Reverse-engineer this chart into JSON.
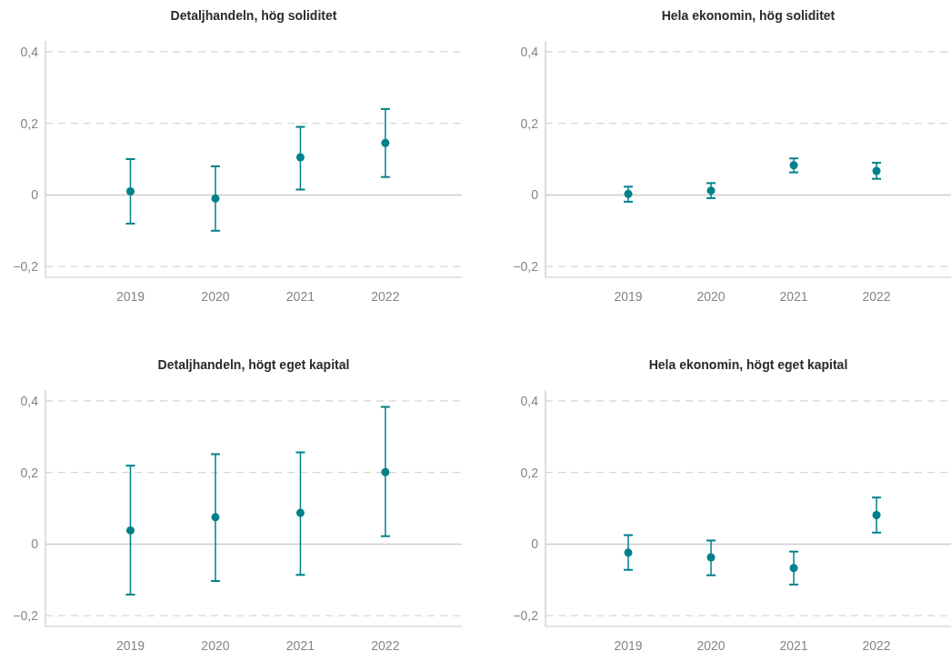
{
  "chart_data": [
    {
      "type": "scatter",
      "title": "Detaljhandeln, hög soliditet",
      "categories": [
        "2019",
        "2020",
        "2021",
        "2022"
      ],
      "series": [
        {
          "color": "#00808a",
          "values": [
            0.01,
            -0.01,
            0.105,
            0.145
          ],
          "errors": [
            [
              -0.08,
              0.1
            ],
            [
              -0.1,
              0.08
            ],
            [
              0.015,
              0.19
            ],
            [
              0.05,
              0.24
            ]
          ]
        }
      ],
      "ylim": [
        -0.23,
        0.43
      ],
      "yticks": [
        {
          "value": -0.2,
          "label": "−0,2"
        },
        {
          "value": 0,
          "label": "0"
        },
        {
          "value": 0.2,
          "label": "0,2"
        },
        {
          "value": 0.4,
          "label": "0,4"
        }
      ],
      "grid": "y",
      "marker": "circle",
      "ref_lines": [
        {
          "axis": "y",
          "value": 0,
          "color": "#cccccc"
        }
      ]
    },
    {
      "type": "scatter",
      "title": "Hela ekonomin, hög soliditet",
      "categories": [
        "2019",
        "2020",
        "2021",
        "2022"
      ],
      "series": [
        {
          "color": "#00808a",
          "values": [
            0.003,
            0.012,
            0.083,
            0.067
          ],
          "errors": [
            [
              -0.019,
              0.023
            ],
            [
              -0.009,
              0.033
            ],
            [
              0.063,
              0.102
            ],
            [
              0.045,
              0.09
            ]
          ]
        }
      ],
      "ylim": [
        -0.23,
        0.43
      ],
      "yticks": [
        {
          "value": -0.2,
          "label": "−0,2"
        },
        {
          "value": 0,
          "label": "0"
        },
        {
          "value": 0.2,
          "label": "0,2"
        },
        {
          "value": 0.4,
          "label": "0,4"
        }
      ],
      "grid": "y",
      "marker": "circle",
      "ref_lines": [
        {
          "axis": "y",
          "value": 0,
          "color": "#cccccc"
        }
      ]
    },
    {
      "type": "scatter",
      "title": "Detaljhandeln, högt eget kapital",
      "categories": [
        "2019",
        "2020",
        "2021",
        "2022"
      ],
      "series": [
        {
          "color": "#00808a",
          "values": [
            0.038,
            0.075,
            0.087,
            0.201
          ],
          "errors": [
            [
              -0.141,
              0.219
            ],
            [
              -0.103,
              0.251
            ],
            [
              -0.086,
              0.256
            ],
            [
              0.022,
              0.383
            ]
          ]
        }
      ],
      "ylim": [
        -0.23,
        0.43
      ],
      "yticks": [
        {
          "value": -0.2,
          "label": "−0,2"
        },
        {
          "value": 0,
          "label": "0"
        },
        {
          "value": 0.2,
          "label": "0,2"
        },
        {
          "value": 0.4,
          "label": "0,4"
        }
      ],
      "grid": "y",
      "marker": "circle",
      "ref_lines": [
        {
          "axis": "y",
          "value": 0,
          "color": "#cccccc"
        }
      ]
    },
    {
      "type": "scatter",
      "title": "Hela ekonomin, högt eget kapital",
      "categories": [
        "2019",
        "2020",
        "2021",
        "2022"
      ],
      "series": [
        {
          "color": "#00808a",
          "values": [
            -0.024,
            -0.037,
            -0.067,
            0.081
          ],
          "errors": [
            [
              -0.072,
              0.025
            ],
            [
              -0.087,
              0.01
            ],
            [
              -0.113,
              -0.021
            ],
            [
              0.032,
              0.13
            ]
          ]
        }
      ],
      "ylim": [
        -0.23,
        0.43
      ],
      "yticks": [
        {
          "value": -0.2,
          "label": "−0,2"
        },
        {
          "value": 0,
          "label": "0"
        },
        {
          "value": 0.2,
          "label": "0,2"
        },
        {
          "value": 0.4,
          "label": "0,4"
        }
      ],
      "grid": "y",
      "marker": "circle",
      "ref_lines": [
        {
          "axis": "y",
          "value": 0,
          "color": "#cccccc"
        }
      ]
    }
  ]
}
